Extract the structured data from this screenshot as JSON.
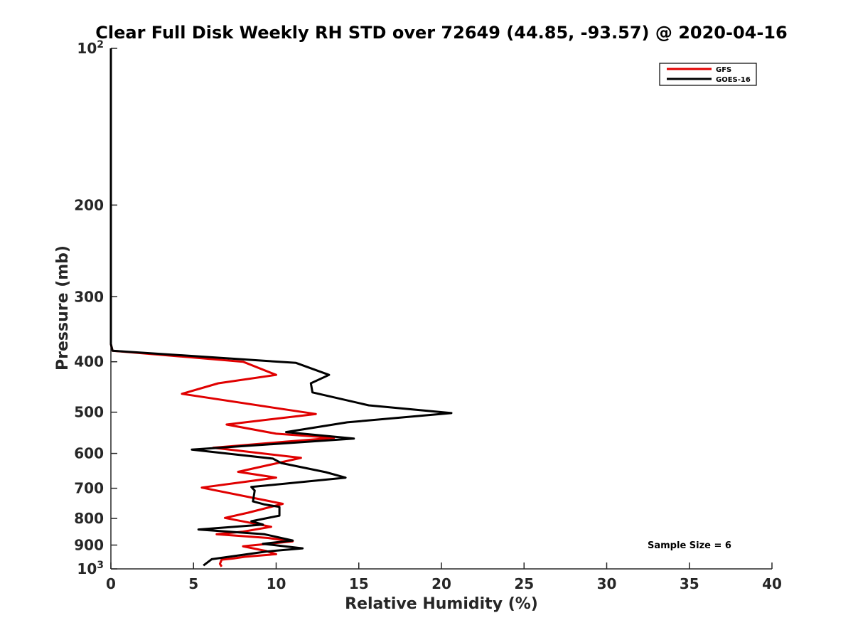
{
  "chart_data": {
    "type": "line",
    "title": "Clear Full Disk Weekly RH STD over 72649 (44.85, -93.57) @ 2020-04-16",
    "xlabel": "Relative Humidity (%)",
    "ylabel": "Pressure (mb)",
    "xlim": [
      0,
      40
    ],
    "ylim": [
      100,
      1000
    ],
    "y_scale": "log",
    "y_reversed": true,
    "x_ticks": [
      "0",
      "5",
      "10",
      "15",
      "20",
      "25",
      "30",
      "35",
      "40"
    ],
    "y_ticks": [
      {
        "value": 100,
        "base": "10",
        "exp": "2"
      },
      {
        "value": 200,
        "label": "200"
      },
      {
        "value": 300,
        "label": "300"
      },
      {
        "value": 400,
        "label": "400"
      },
      {
        "value": 500,
        "label": "500"
      },
      {
        "value": 600,
        "label": "600"
      },
      {
        "value": 700,
        "label": "700"
      },
      {
        "value": 800,
        "label": "800"
      },
      {
        "value": 900,
        "label": "900"
      },
      {
        "value": 1000,
        "base": "10",
        "exp": "3"
      }
    ],
    "legend_position": "top-right",
    "annotation": "Sample Size = 6",
    "series": [
      {
        "name": "GFS",
        "color": "#e00000",
        "points": [
          [
            0,
            100
          ],
          [
            0,
            200
          ],
          [
            0,
            300
          ],
          [
            0,
            370
          ],
          [
            0.1,
            381
          ],
          [
            8,
            400
          ],
          [
            10,
            424
          ],
          [
            6.5,
            440
          ],
          [
            4.3,
            461
          ],
          [
            9.8,
            490
          ],
          [
            12.4,
            504
          ],
          [
            7,
            528
          ],
          [
            10,
            550
          ],
          [
            13.5,
            560
          ],
          [
            10.5,
            570
          ],
          [
            6.2,
            585
          ],
          [
            11.5,
            612
          ],
          [
            7.7,
            651
          ],
          [
            10,
            668
          ],
          [
            5.5,
            698
          ],
          [
            10.4,
            750
          ],
          [
            8.3,
            780
          ],
          [
            6.9,
            798
          ],
          [
            9.7,
            830
          ],
          [
            8,
            848
          ],
          [
            6.4,
            858
          ],
          [
            9.5,
            872
          ],
          [
            11,
            885
          ],
          [
            8,
            905
          ],
          [
            9.4,
            924
          ],
          [
            10,
            937
          ],
          [
            8.1,
            948
          ],
          [
            7.4,
            955
          ],
          [
            6.7,
            960
          ],
          [
            6.6,
            978
          ],
          [
            6.7,
            990
          ]
        ]
      },
      {
        "name": "GOES-16",
        "color": "#000000",
        "points": [
          [
            0,
            100
          ],
          [
            0,
            200
          ],
          [
            0,
            300
          ],
          [
            0,
            370
          ],
          [
            0.1,
            381
          ],
          [
            11.2,
            402
          ],
          [
            13.2,
            424
          ],
          [
            12.1,
            440
          ],
          [
            12.2,
            458
          ],
          [
            15.6,
            485
          ],
          [
            20.6,
            502
          ],
          [
            14.3,
            523
          ],
          [
            10.6,
            546
          ],
          [
            14.7,
            562
          ],
          [
            4.9,
            590
          ],
          [
            9.8,
            614
          ],
          [
            10.3,
            626
          ],
          [
            13,
            652
          ],
          [
            14.2,
            668
          ],
          [
            8.5,
            696
          ],
          [
            8.7,
            707
          ],
          [
            8.6,
            742
          ],
          [
            9.3,
            752
          ],
          [
            10.2,
            760
          ],
          [
            10.2,
            790
          ],
          [
            8.5,
            810
          ],
          [
            9.2,
            822
          ],
          [
            5.3,
            840
          ],
          [
            9.3,
            858
          ],
          [
            11,
            882
          ],
          [
            9.2,
            895
          ],
          [
            11.6,
            913
          ],
          [
            9.4,
            926
          ],
          [
            6.1,
            958
          ],
          [
            5.6,
            985
          ]
        ]
      }
    ]
  }
}
